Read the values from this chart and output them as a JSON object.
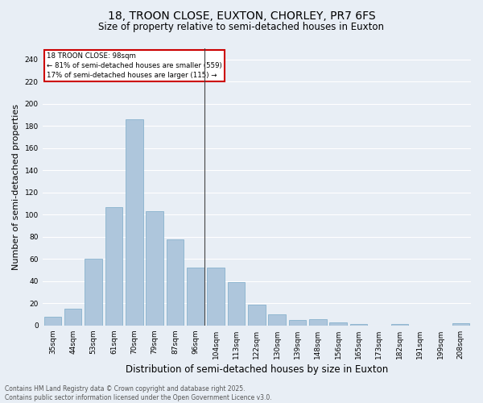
{
  "title": "18, TROON CLOSE, EUXTON, CHORLEY, PR7 6FS",
  "subtitle": "Size of property relative to semi-detached houses in Euxton",
  "xlabel": "Distribution of semi-detached houses by size in Euxton",
  "ylabel": "Number of semi-detached properties",
  "categories": [
    "35sqm",
    "44sqm",
    "53sqm",
    "61sqm",
    "70sqm",
    "79sqm",
    "87sqm",
    "96sqm",
    "104sqm",
    "113sqm",
    "122sqm",
    "130sqm",
    "139sqm",
    "148sqm",
    "156sqm",
    "165sqm",
    "173sqm",
    "182sqm",
    "191sqm",
    "199sqm",
    "208sqm"
  ],
  "values": [
    8,
    15,
    60,
    107,
    186,
    103,
    78,
    52,
    52,
    39,
    19,
    10,
    5,
    6,
    3,
    1,
    0,
    1,
    0,
    0,
    2
  ],
  "bar_color": "#aec6dc",
  "bar_edge_color": "#7aaac8",
  "highlight_index": 7,
  "highlight_line_color": "#444444",
  "ylim": [
    0,
    250
  ],
  "yticks": [
    0,
    20,
    40,
    60,
    80,
    100,
    120,
    140,
    160,
    180,
    200,
    220,
    240
  ],
  "annotation_title": "18 TROON CLOSE: 98sqm",
  "annotation_line1": "← 81% of semi-detached houses are smaller (559)",
  "annotation_line2": "17% of semi-detached houses are larger (115) →",
  "annotation_box_color": "#ffffff",
  "annotation_box_edge": "#cc0000",
  "footer": "Contains HM Land Registry data © Crown copyright and database right 2025.\nContains public sector information licensed under the Open Government Licence v3.0.",
  "bg_color": "#e8eef5",
  "grid_color": "#ffffff",
  "title_fontsize": 10,
  "subtitle_fontsize": 8.5,
  "axis_label_fontsize": 8,
  "tick_fontsize": 6.5,
  "footer_fontsize": 5.5
}
